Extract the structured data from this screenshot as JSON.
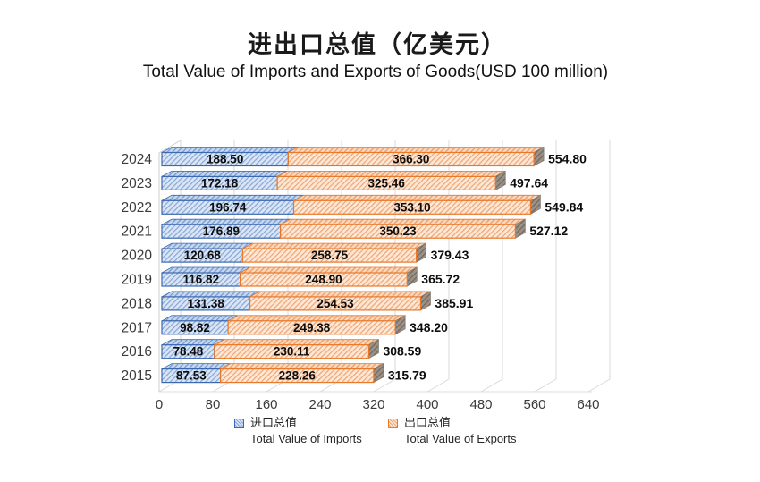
{
  "title": {
    "zh": "进出口总值（亿美元）",
    "en": "Total Value of Imports and Exports of Goods(USD 100 million)"
  },
  "chart_data": {
    "type": "bar",
    "orientation": "horizontal",
    "stacked": true,
    "pseudo_3d": true,
    "categories": [
      "2024",
      "2023",
      "2022",
      "2021",
      "2020",
      "2019",
      "2018",
      "2017",
      "2016",
      "2015"
    ],
    "series": [
      {
        "name_zh": "进口总值",
        "name_en": "Total Value of Imports",
        "color": "#4472c4",
        "fill_light": "#dbe5f4",
        "hatch": "#84a7da",
        "values": [
          188.5,
          172.18,
          196.74,
          176.89,
          120.68,
          116.82,
          131.38,
          98.82,
          78.48,
          87.53
        ]
      },
      {
        "name_zh": "出口总值",
        "name_en": "Total Value of Exports",
        "color": "#ed7d31",
        "fill_light": "#fde8d7",
        "hatch": "#f0a470",
        "values": [
          366.3,
          325.46,
          353.1,
          350.23,
          258.75,
          248.9,
          254.53,
          249.38,
          230.11,
          228.26
        ]
      }
    ],
    "totals": [
      554.8,
      497.64,
      549.84,
      527.12,
      379.43,
      365.72,
      385.91,
      348.2,
      308.59,
      315.79
    ],
    "x_ticks": [
      0,
      80,
      160,
      240,
      320,
      400,
      480,
      560,
      640
    ],
    "xlim": [
      0,
      640
    ],
    "grid": true,
    "gridline_color": "#d9d9d9",
    "axis_text_color": "#3a3a3a",
    "label_text_color": "#0d0d0d",
    "cap_color": "#9b9186",
    "legend_position": "bottom"
  }
}
